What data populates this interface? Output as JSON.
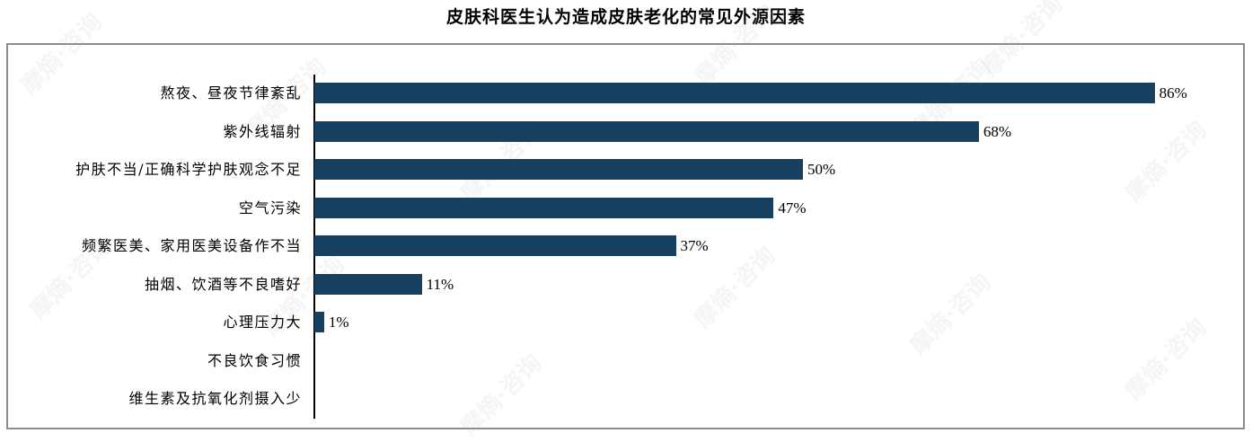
{
  "title": "皮肤科医生认为造成皮肤老化的常见外源因素",
  "colors": {
    "bar": "#173F5F",
    "frame": "#8C8C8C",
    "axis": "#000000"
  },
  "watermark": "摩熵·咨询",
  "chart_data": {
    "type": "bar",
    "orientation": "horizontal",
    "title": "皮肤科医生认为造成皮肤老化的常见外源因素",
    "xlabel": "",
    "ylabel": "",
    "categories": [
      "熬夜、昼夜节律紊乱",
      "紫外线辐射",
      "护肤不当/正确科学护肤观念不足",
      "空气污染",
      "频繁医美、家用医美设备作不当",
      "抽烟、饮酒等不良嗜好",
      "心理压力大",
      "不良饮食习惯",
      "维生素及抗氧化剂摄入少"
    ],
    "values": [
      86,
      68,
      50,
      47,
      37,
      11,
      1,
      0,
      0
    ],
    "value_labels": [
      "86%",
      "68%",
      "50%",
      "47%",
      "37%",
      "11%",
      "1%",
      "",
      ""
    ],
    "unit": "%",
    "grid": false,
    "legend": null
  }
}
